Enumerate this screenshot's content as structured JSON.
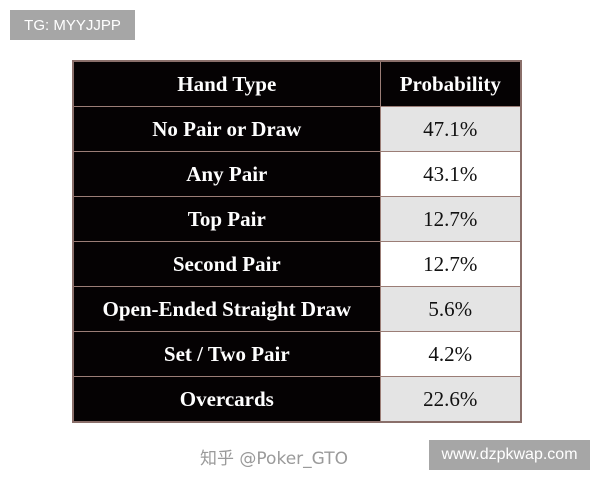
{
  "tag_label": "TG: MYYJJPP",
  "site_label": "www.dzpkwap.com",
  "watermark": "知乎 @Poker_GTO",
  "table": {
    "headers": [
      "Hand Type",
      "Probability"
    ],
    "rows": [
      {
        "hand": "No Pair or Draw",
        "prob": "47.1%"
      },
      {
        "hand": "Any Pair",
        "prob": "43.1%"
      },
      {
        "hand": "Top Pair",
        "prob": "12.7%"
      },
      {
        "hand": "Second Pair",
        "prob": "12.7%"
      },
      {
        "hand": "Open-Ended Straight Draw",
        "prob": "5.6%"
      },
      {
        "hand": "Set / Two Pair",
        "prob": "4.2%"
      },
      {
        "hand": "Overcards",
        "prob": "22.6%"
      }
    ]
  }
}
